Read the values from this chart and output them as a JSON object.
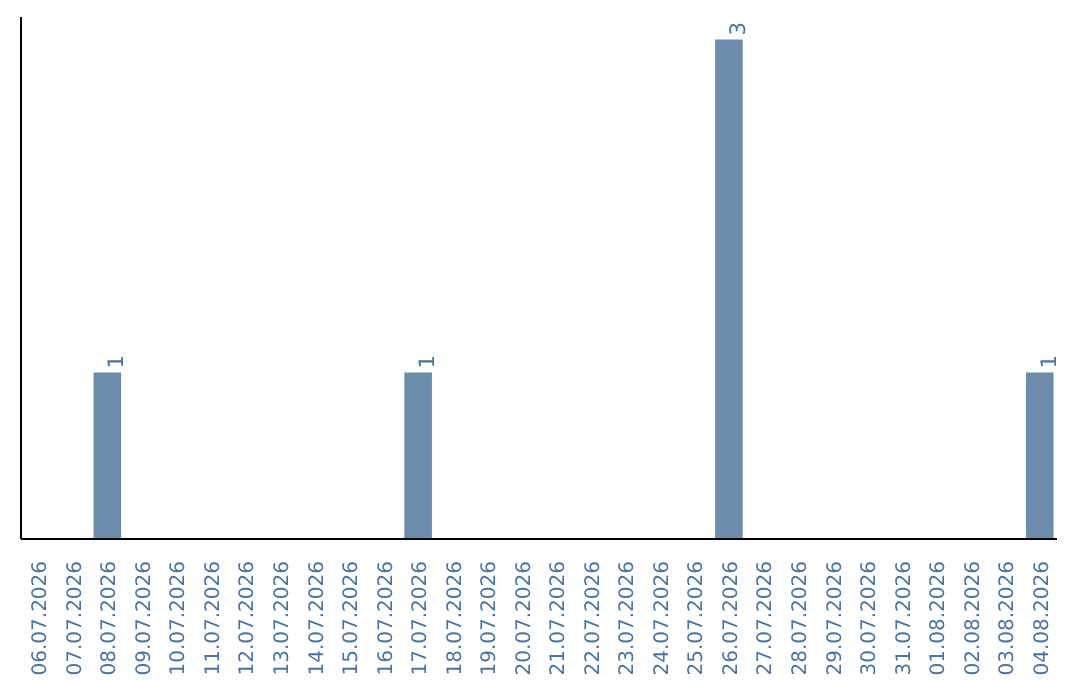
{
  "chart_data": {
    "type": "bar",
    "categories": [
      "06.07.2026",
      "07.07.2026",
      "08.07.2026",
      "09.07.2026",
      "10.07.2026",
      "11.07.2026",
      "12.07.2026",
      "13.07.2026",
      "14.07.2026",
      "15.07.2026",
      "16.07.2026",
      "17.07.2026",
      "18.07.2026",
      "19.07.2026",
      "20.07.2026",
      "21.07.2026",
      "22.07.2026",
      "23.07.2026",
      "24.07.2026",
      "25.07.2026",
      "26.07.2026",
      "27.07.2026",
      "28.07.2026",
      "29.07.2026",
      "30.07.2026",
      "31.07.2026",
      "01.08.2026",
      "02.08.2026",
      "03.08.2026",
      "04.08.2026"
    ],
    "values": [
      0,
      0,
      1,
      0,
      0,
      0,
      0,
      0,
      0,
      0,
      0,
      1,
      0,
      0,
      0,
      0,
      0,
      0,
      0,
      0,
      3,
      0,
      0,
      0,
      0,
      0,
      0,
      0,
      0,
      1
    ],
    "value_labels": [
      null,
      null,
      "1",
      null,
      null,
      null,
      null,
      null,
      null,
      null,
      null,
      "1",
      null,
      null,
      null,
      null,
      null,
      null,
      null,
      null,
      "3",
      null,
      null,
      null,
      null,
      null,
      null,
      null,
      null,
      "1"
    ],
    "color": "#6b8cab",
    "ylim": [
      0,
      3
    ],
    "tick_labels": "x",
    "grid": false
  }
}
